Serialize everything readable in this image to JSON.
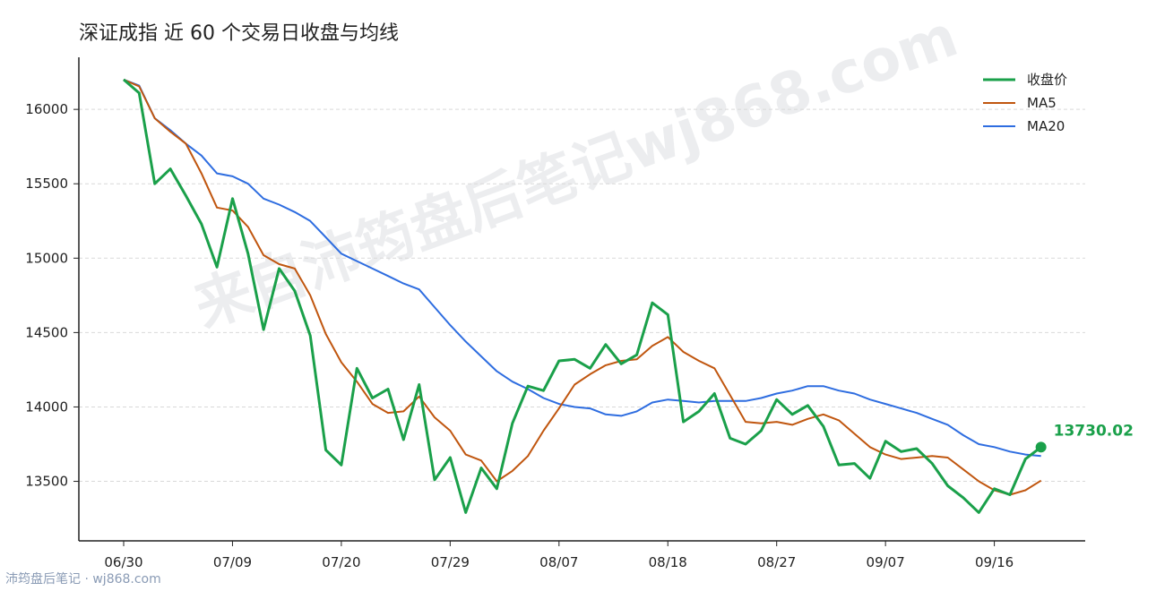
{
  "chart_data": {
    "type": "line",
    "title": "深证成指 近 60 个交易日收盘与均线",
    "xlabel": "",
    "ylabel": "",
    "ylim": [
      13100,
      16350
    ],
    "yticks": [
      13500,
      14000,
      14500,
      15000,
      15500,
      16000
    ],
    "xticks": [
      {
        "index": 0,
        "label": "06/30"
      },
      {
        "index": 7,
        "label": "07/09"
      },
      {
        "index": 14,
        "label": "07/20"
      },
      {
        "index": 21,
        "label": "07/29"
      },
      {
        "index": 28,
        "label": "08/07"
      },
      {
        "index": 35,
        "label": "08/18"
      },
      {
        "index": 42,
        "label": "08/27"
      },
      {
        "index": 49,
        "label": "09/07"
      },
      {
        "index": 56,
        "label": "09/16"
      }
    ],
    "grid": "horizontal",
    "legend": "top-right",
    "series": [
      {
        "name": "收盘价",
        "color": "#1aa04a",
        "width": 3,
        "values": [
          16200,
          16110,
          15500,
          15600,
          15420,
          15230,
          14940,
          15400,
          15030,
          14520,
          14930,
          14780,
          14480,
          13710,
          13610,
          14260,
          14060,
          14120,
          13780,
          14150,
          13510,
          13660,
          13290,
          13590,
          13450,
          13890,
          14140,
          14110,
          14310,
          14320,
          14260,
          14420,
          14290,
          14350,
          14700,
          14620,
          13900,
          13970,
          14090,
          13790,
          13750,
          13840,
          14050,
          13950,
          14010,
          13870,
          13610,
          13620,
          13520,
          13770,
          13700,
          13720,
          13620,
          13470,
          13390,
          13290,
          13450,
          13410,
          13650,
          13730.02
        ]
      },
      {
        "name": "MA5",
        "color": "#c0560f",
        "width": 2,
        "values": [
          16200,
          16155,
          15940,
          15850,
          15770,
          15570,
          15340,
          15320,
          15210,
          15020,
          14960,
          14930,
          14750,
          14490,
          14300,
          14170,
          14020,
          13960,
          13970,
          14070,
          13930,
          13840,
          13680,
          13640,
          13500,
          13570,
          13670,
          13840,
          13990,
          14150,
          14220,
          14280,
          14310,
          14320,
          14410,
          14470,
          14370,
          14310,
          14260,
          14080,
          13900,
          13890,
          13900,
          13880,
          13920,
          13950,
          13910,
          13820,
          13730,
          13680,
          13650,
          13660,
          13670,
          13660,
          13580,
          13500,
          13440,
          13410,
          13440,
          13505
        ]
      },
      {
        "name": "MA20",
        "color": "#2e6de0",
        "width": 2,
        "values": [
          16200,
          16160,
          15940,
          15860,
          15770,
          15690,
          15570,
          15550,
          15500,
          15400,
          15360,
          15310,
          15250,
          15140,
          15030,
          14980,
          14930,
          14880,
          14830,
          14790,
          14670,
          14550,
          14440,
          14340,
          14240,
          14170,
          14120,
          14060,
          14020,
          14000,
          13990,
          13950,
          13940,
          13970,
          14030,
          14050,
          14040,
          14030,
          14040,
          14040,
          14040,
          14060,
          14090,
          14110,
          14140,
          14140,
          14110,
          14090,
          14050,
          14020,
          13990,
          13960,
          13920,
          13880,
          13810,
          13750,
          13730,
          13700,
          13680,
          13670
        ]
      }
    ],
    "last_point_label": "13730.02"
  },
  "watermark": "来自沛筠盘后笔记wj868.com",
  "footer": "沛筠盘后笔记 · wj868.com"
}
